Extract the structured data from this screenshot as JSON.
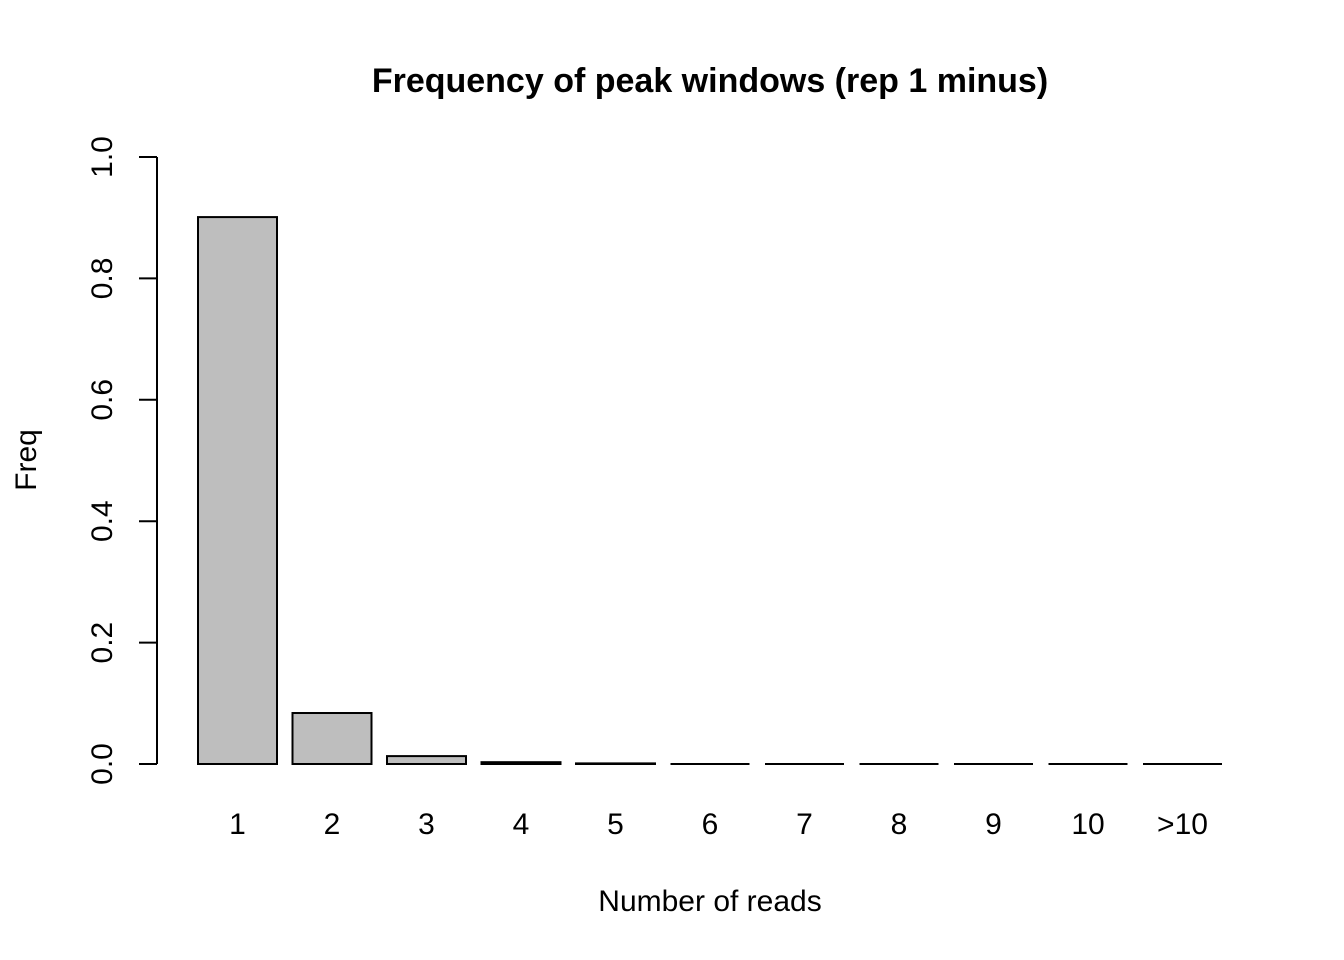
{
  "chart_data": {
    "type": "bar",
    "title": "Frequency of peak windows (rep 1 minus)",
    "xlabel": "Number of reads",
    "ylabel": "Freq",
    "categories": [
      "1",
      "2",
      "3",
      "4",
      "5",
      "6",
      "7",
      "8",
      "9",
      "10",
      ">10"
    ],
    "values": [
      0.901,
      0.084,
      0.013,
      0.003,
      0.001,
      0.0,
      0.0,
      0.0,
      0.0,
      0.0,
      0.0
    ],
    "ylim": [
      0,
      1.0
    ],
    "yticks": [
      0.0,
      0.2,
      0.4,
      0.6,
      0.8,
      1.0
    ],
    "ytick_labels": [
      "0.0",
      "0.2",
      "0.4",
      "0.6",
      "0.8",
      "1.0"
    ],
    "grid": false,
    "legend": "none",
    "colors": {
      "bar_fill": "#bebebe",
      "bar_stroke": "#000000",
      "background": "#ffffff"
    }
  }
}
